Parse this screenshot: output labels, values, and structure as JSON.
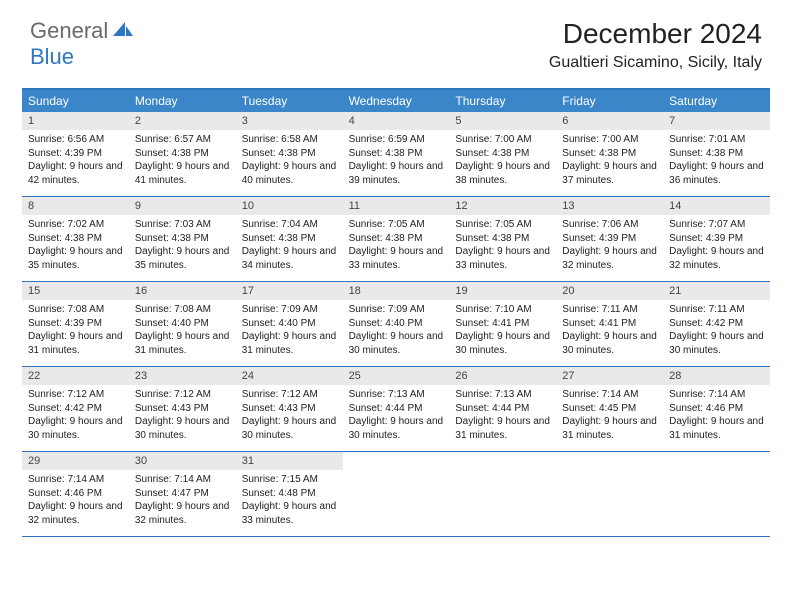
{
  "logo": {
    "general": "General",
    "blue": "Blue"
  },
  "title": "December 2024",
  "location": "Gualtieri Sicamino, Sicily, Italy",
  "colors": {
    "header_bg": "#3a86c8",
    "border": "#2f78bf",
    "daynum_bg": "#e9e9e9",
    "text": "#222222",
    "logo_gray": "#6a6a6a",
    "logo_blue": "#2f78bf"
  },
  "day_names": [
    "Sunday",
    "Monday",
    "Tuesday",
    "Wednesday",
    "Thursday",
    "Friday",
    "Saturday"
  ],
  "labels": {
    "sunrise": "Sunrise: ",
    "sunset": "Sunset: ",
    "daylight": "Daylight: "
  },
  "weeks": [
    [
      {
        "num": "1",
        "sunrise": "6:56 AM",
        "sunset": "4:39 PM",
        "daylight": "9 hours and 42 minutes."
      },
      {
        "num": "2",
        "sunrise": "6:57 AM",
        "sunset": "4:38 PM",
        "daylight": "9 hours and 41 minutes."
      },
      {
        "num": "3",
        "sunrise": "6:58 AM",
        "sunset": "4:38 PM",
        "daylight": "9 hours and 40 minutes."
      },
      {
        "num": "4",
        "sunrise": "6:59 AM",
        "sunset": "4:38 PM",
        "daylight": "9 hours and 39 minutes."
      },
      {
        "num": "5",
        "sunrise": "7:00 AM",
        "sunset": "4:38 PM",
        "daylight": "9 hours and 38 minutes."
      },
      {
        "num": "6",
        "sunrise": "7:00 AM",
        "sunset": "4:38 PM",
        "daylight": "9 hours and 37 minutes."
      },
      {
        "num": "7",
        "sunrise": "7:01 AM",
        "sunset": "4:38 PM",
        "daylight": "9 hours and 36 minutes."
      }
    ],
    [
      {
        "num": "8",
        "sunrise": "7:02 AM",
        "sunset": "4:38 PM",
        "daylight": "9 hours and 35 minutes."
      },
      {
        "num": "9",
        "sunrise": "7:03 AM",
        "sunset": "4:38 PM",
        "daylight": "9 hours and 35 minutes."
      },
      {
        "num": "10",
        "sunrise": "7:04 AM",
        "sunset": "4:38 PM",
        "daylight": "9 hours and 34 minutes."
      },
      {
        "num": "11",
        "sunrise": "7:05 AM",
        "sunset": "4:38 PM",
        "daylight": "9 hours and 33 minutes."
      },
      {
        "num": "12",
        "sunrise": "7:05 AM",
        "sunset": "4:38 PM",
        "daylight": "9 hours and 33 minutes."
      },
      {
        "num": "13",
        "sunrise": "7:06 AM",
        "sunset": "4:39 PM",
        "daylight": "9 hours and 32 minutes."
      },
      {
        "num": "14",
        "sunrise": "7:07 AM",
        "sunset": "4:39 PM",
        "daylight": "9 hours and 32 minutes."
      }
    ],
    [
      {
        "num": "15",
        "sunrise": "7:08 AM",
        "sunset": "4:39 PM",
        "daylight": "9 hours and 31 minutes."
      },
      {
        "num": "16",
        "sunrise": "7:08 AM",
        "sunset": "4:40 PM",
        "daylight": "9 hours and 31 minutes."
      },
      {
        "num": "17",
        "sunrise": "7:09 AM",
        "sunset": "4:40 PM",
        "daylight": "9 hours and 31 minutes."
      },
      {
        "num": "18",
        "sunrise": "7:09 AM",
        "sunset": "4:40 PM",
        "daylight": "9 hours and 30 minutes."
      },
      {
        "num": "19",
        "sunrise": "7:10 AM",
        "sunset": "4:41 PM",
        "daylight": "9 hours and 30 minutes."
      },
      {
        "num": "20",
        "sunrise": "7:11 AM",
        "sunset": "4:41 PM",
        "daylight": "9 hours and 30 minutes."
      },
      {
        "num": "21",
        "sunrise": "7:11 AM",
        "sunset": "4:42 PM",
        "daylight": "9 hours and 30 minutes."
      }
    ],
    [
      {
        "num": "22",
        "sunrise": "7:12 AM",
        "sunset": "4:42 PM",
        "daylight": "9 hours and 30 minutes."
      },
      {
        "num": "23",
        "sunrise": "7:12 AM",
        "sunset": "4:43 PM",
        "daylight": "9 hours and 30 minutes."
      },
      {
        "num": "24",
        "sunrise": "7:12 AM",
        "sunset": "4:43 PM",
        "daylight": "9 hours and 30 minutes."
      },
      {
        "num": "25",
        "sunrise": "7:13 AM",
        "sunset": "4:44 PM",
        "daylight": "9 hours and 30 minutes."
      },
      {
        "num": "26",
        "sunrise": "7:13 AM",
        "sunset": "4:44 PM",
        "daylight": "9 hours and 31 minutes."
      },
      {
        "num": "27",
        "sunrise": "7:14 AM",
        "sunset": "4:45 PM",
        "daylight": "9 hours and 31 minutes."
      },
      {
        "num": "28",
        "sunrise": "7:14 AM",
        "sunset": "4:46 PM",
        "daylight": "9 hours and 31 minutes."
      }
    ],
    [
      {
        "num": "29",
        "sunrise": "7:14 AM",
        "sunset": "4:46 PM",
        "daylight": "9 hours and 32 minutes."
      },
      {
        "num": "30",
        "sunrise": "7:14 AM",
        "sunset": "4:47 PM",
        "daylight": "9 hours and 32 minutes."
      },
      {
        "num": "31",
        "sunrise": "7:15 AM",
        "sunset": "4:48 PM",
        "daylight": "9 hours and 33 minutes."
      },
      null,
      null,
      null,
      null
    ]
  ]
}
